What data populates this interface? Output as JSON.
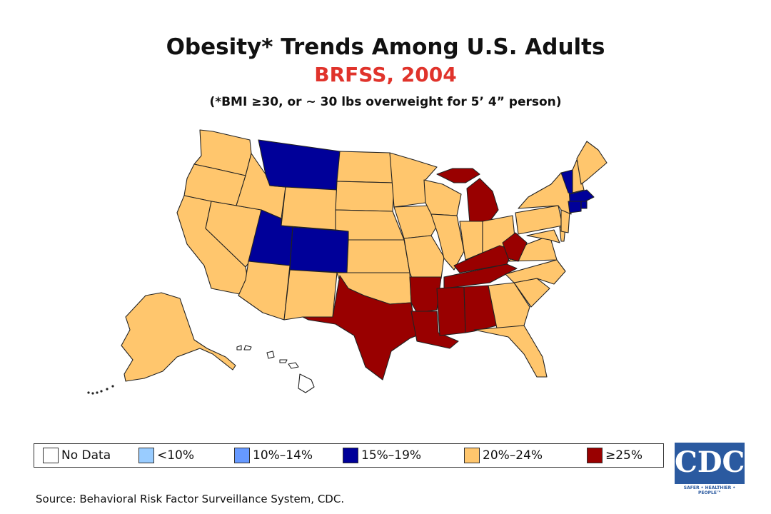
{
  "header": {
    "title": "Obesity* Trends Among U.S. Adults",
    "subtitle": "BRFSS, 2004",
    "note": "(*BMI ≥30, or ~ 30 lbs overweight for 5’ 4” person)"
  },
  "colors": {
    "no_data": "#ffffff",
    "lt10": "#99ccff",
    "c10_14": "#6699ff",
    "c15_19": "#000099",
    "c20_24": "#ffc66d",
    "ge25": "#990000",
    "title_accent": "#e0332b"
  },
  "legend": [
    {
      "label": "No Data",
      "color": "#ffffff"
    },
    {
      "label": "<10%",
      "color": "#99ccff"
    },
    {
      "label": "10%–14%",
      "color": "#6699ff"
    },
    {
      "label": "15%–19%",
      "color": "#000099"
    },
    {
      "label": "20%–24%",
      "color": "#ffc66d"
    },
    {
      "label": "≥25%",
      "color": "#990000"
    }
  ],
  "state_categories": {
    "WA": "20-24",
    "OR": "20-24",
    "CA": "20-24",
    "NV": "20-24",
    "ID": "20-24",
    "MT": "15-19",
    "WY": "20-24",
    "UT": "15-19",
    "CO": "15-19",
    "AZ": "20-24",
    "NM": "20-24",
    "ND": "20-24",
    "SD": "20-24",
    "NE": "20-24",
    "KS": "20-24",
    "OK": "20-24",
    "TX": ">=25",
    "MN": "20-24",
    "IA": "20-24",
    "MO": "20-24",
    "AR": ">=25",
    "LA": ">=25",
    "WI": "20-24",
    "IL": "20-24",
    "MI": ">=25",
    "IN": "20-24",
    "OH": "20-24",
    "KY": ">=25",
    "TN": ">=25",
    "MS": ">=25",
    "AL": ">=25",
    "GA": "20-24",
    "FL": "20-24",
    "SC": "20-24",
    "NC": "20-24",
    "VA": "20-24",
    "WV": ">=25",
    "MD": "20-24",
    "DE": "20-24",
    "PA": "20-24",
    "NJ": "20-24",
    "NY": "20-24",
    "CT": "15-19",
    "RI": "15-19",
    "MA": "15-19",
    "VT": "15-19",
    "NH": "20-24",
    "ME": "20-24",
    "AK": "20-24",
    "HI": "No Data"
  },
  "source": "Source: Behavioral Risk Factor Surveillance System, CDC.",
  "logo": {
    "text": "CDC",
    "tagline": "SAFER • HEALTHIER • PEOPLE™"
  }
}
